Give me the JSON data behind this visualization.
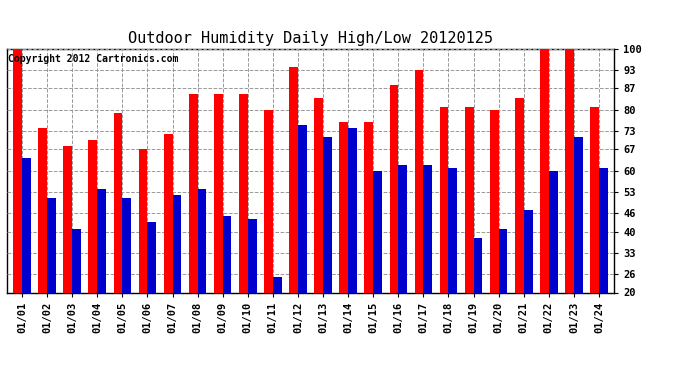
{
  "title": "Outdoor Humidity Daily High/Low 20120125",
  "copyright": "Copyright 2012 Cartronics.com",
  "dates": [
    "01/01",
    "01/02",
    "01/03",
    "01/04",
    "01/05",
    "01/06",
    "01/07",
    "01/08",
    "01/09",
    "01/10",
    "01/11",
    "01/12",
    "01/13",
    "01/14",
    "01/15",
    "01/16",
    "01/17",
    "01/18",
    "01/19",
    "01/20",
    "01/21",
    "01/22",
    "01/23",
    "01/24"
  ],
  "high": [
    100,
    74,
    68,
    70,
    79,
    67,
    72,
    85,
    85,
    85,
    80,
    94,
    84,
    76,
    76,
    88,
    93,
    81,
    81,
    80,
    84,
    100,
    100,
    81
  ],
  "low": [
    64,
    51,
    41,
    54,
    51,
    43,
    52,
    54,
    45,
    44,
    25,
    75,
    71,
    74,
    60,
    62,
    62,
    61,
    38,
    41,
    47,
    60,
    71,
    61
  ],
  "high_color": "#ff0000",
  "low_color": "#0000cc",
  "bg_color": "#ffffff",
  "ylim": [
    20,
    100
  ],
  "yticks": [
    20,
    26,
    33,
    40,
    46,
    53,
    60,
    67,
    73,
    80,
    87,
    93,
    100
  ],
  "bar_width": 0.35,
  "title_fontsize": 11,
  "tick_fontsize": 7.5,
  "grid_color": "#999999",
  "copyright_fontsize": 7
}
